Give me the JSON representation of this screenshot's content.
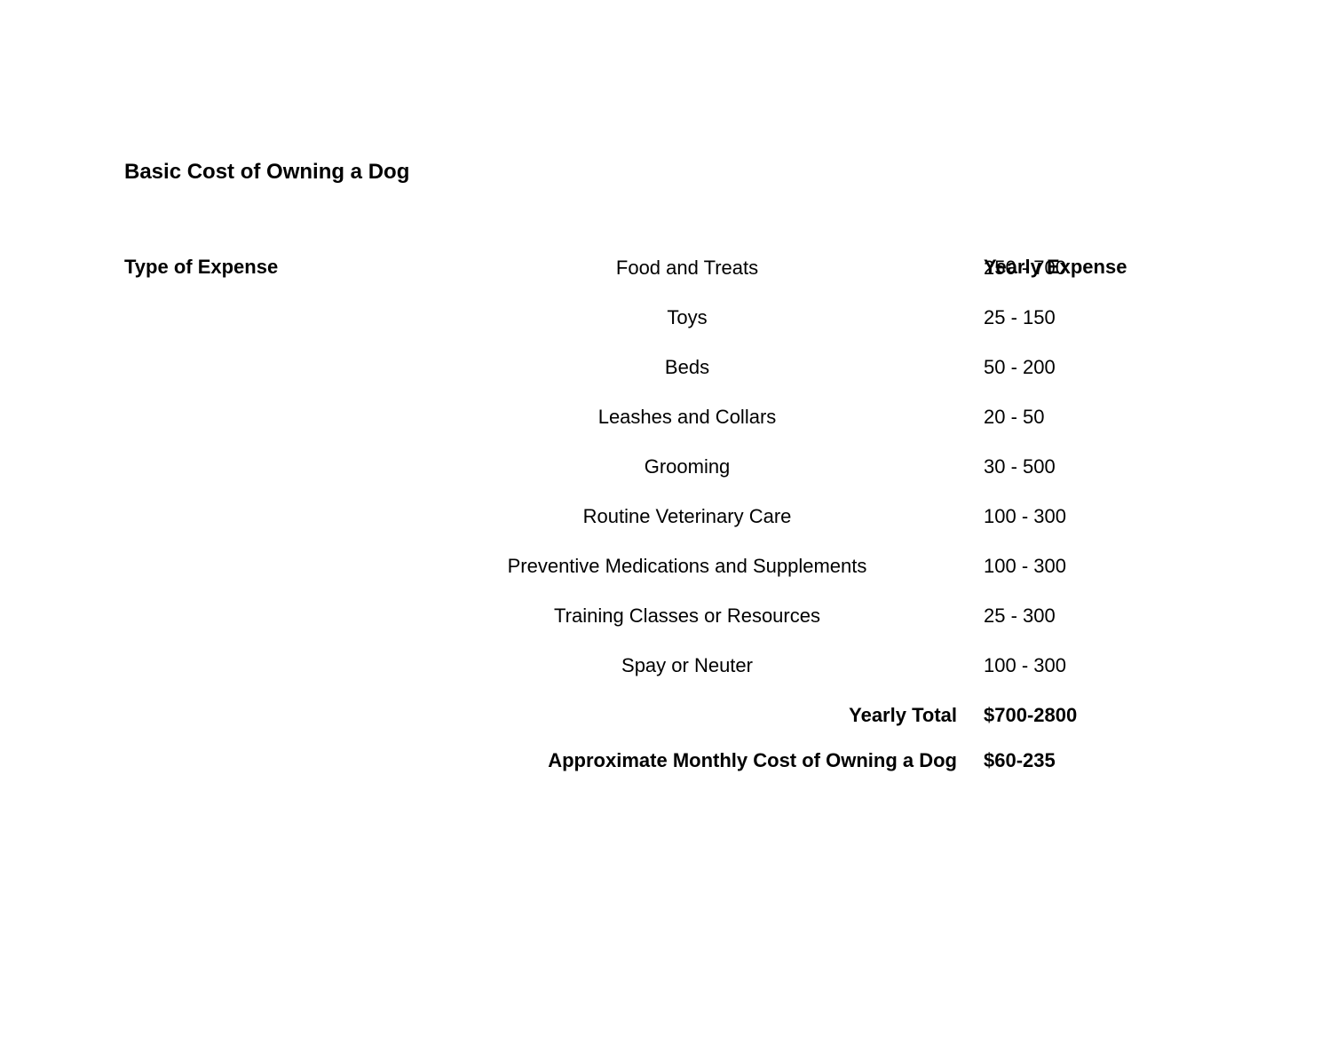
{
  "title": "Basic Cost of Owning a Dog",
  "headers": {
    "left": "Type of Expense",
    "right": "Yearly Expense"
  },
  "rows": [
    {
      "label": "Food and Treats",
      "value": "250 - 700"
    },
    {
      "label": "Toys",
      "value": "25 - 150"
    },
    {
      "label": "Beds",
      "value": "50 - 200"
    },
    {
      "label": "Leashes and Collars",
      "value": "20 - 50"
    },
    {
      "label": "Grooming",
      "value": "30 - 500"
    },
    {
      "label": "Routine Veterinary Care",
      "value": "100 - 300"
    },
    {
      "label": "Preventive Medications and Supplements",
      "value": "100 - 300"
    },
    {
      "label": "Training Classes or Resources",
      "value": "25 - 300"
    },
    {
      "label": "Spay or Neuter",
      "value": "100 - 300"
    }
  ],
  "totals": [
    {
      "label": "Yearly Total",
      "value": "$700-2800"
    },
    {
      "label": "Approximate Monthly Cost of Owning a Dog",
      "value": "$60-235"
    }
  ],
  "style": {
    "background_color": "#ffffff",
    "text_color": "#000000",
    "title_fontsize": 24,
    "body_fontsize": 22,
    "font_family": "Verdana, Geneva, sans-serif"
  }
}
